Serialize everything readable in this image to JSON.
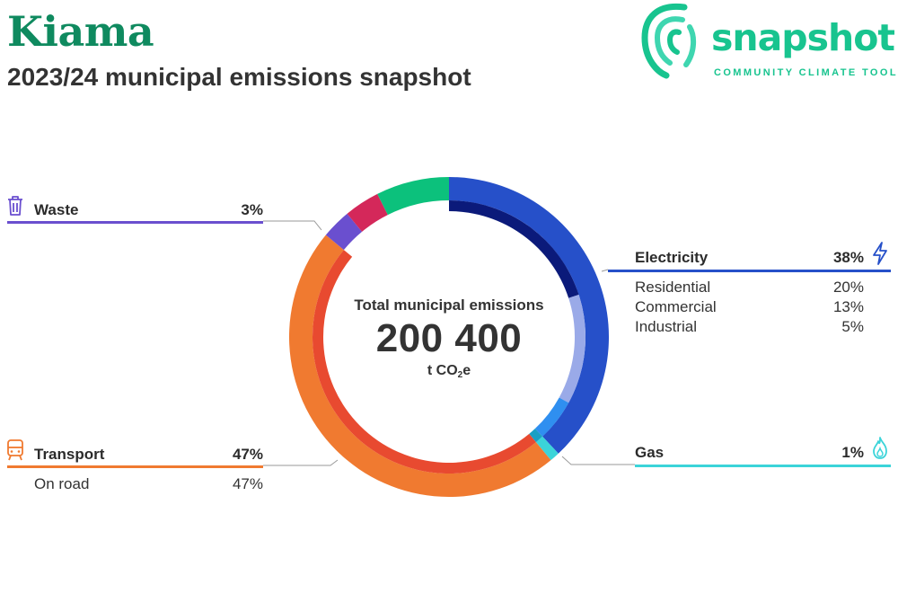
{
  "header": {
    "title": "Kiama",
    "subtitle": "2023/24 municipal emissions snapshot"
  },
  "logo": {
    "word": "snapshot",
    "tagline": "COMMUNITY CLIMATE TOOL"
  },
  "center": {
    "label": "Total municipal emissions",
    "total": "200 400",
    "unit_prefix": "t CO",
    "unit_sub": "2",
    "unit_suffix": "e"
  },
  "colors": {
    "electricity": "#2650c9",
    "electricity_residential": "#0b1a7a",
    "electricity_commercial": "#9aaae8",
    "electricity_industrial": "#2f8ff0",
    "gas": "#3bd4d9",
    "gas_inner": "#1a9fc4",
    "transport": "#f07a30",
    "transport_inner": "#e84a30",
    "waste": "#6a4fcf",
    "agriculture": "#d4285a",
    "other": "#0cc17c",
    "leader": "#9a9a9a"
  },
  "icons": {
    "waste": "trash-can-icon",
    "transport": "train-icon",
    "electricity": "lightning-bolt-icon",
    "gas": "flame-icon"
  },
  "chart_data": {
    "type": "pie",
    "title": "Total municipal emissions",
    "total": 200400,
    "unit": "t CO2e",
    "start_angle_deg": 0,
    "outer_ring": [
      {
        "key": "electricity",
        "label": "Electricity",
        "value": 38
      },
      {
        "key": "gas",
        "label": "Gas",
        "value": 1
      },
      {
        "key": "transport",
        "label": "Transport",
        "value": 47
      },
      {
        "key": "waste",
        "label": "Waste",
        "value": 3
      },
      {
        "key": "agriculture",
        "label": "",
        "value": 3.6
      },
      {
        "key": "other",
        "label": "",
        "value": 7.4
      }
    ],
    "inner_ring": [
      {
        "key": "electricity_residential",
        "parent": "electricity",
        "label": "Residential",
        "value": 20
      },
      {
        "key": "electricity_commercial",
        "parent": "electricity",
        "label": "Commercial",
        "value": 13
      },
      {
        "key": "electricity_industrial",
        "parent": "electricity",
        "label": "Industrial",
        "value": 5
      },
      {
        "key": "gas_inner",
        "parent": "gas",
        "label": "",
        "value": 1
      },
      {
        "key": "transport_inner",
        "parent": "transport",
        "label": "On road",
        "value": 47
      }
    ]
  },
  "labels": {
    "waste": {
      "name": "Waste",
      "pct": "3%"
    },
    "transport": {
      "name": "Transport",
      "pct": "47%",
      "subs": [
        {
          "name": "On road",
          "pct": "47%"
        }
      ]
    },
    "electricity": {
      "name": "Electricity",
      "pct": "38%",
      "subs": [
        {
          "name": "Residential",
          "pct": "20%"
        },
        {
          "name": "Commercial",
          "pct": "13%"
        },
        {
          "name": "Industrial",
          "pct": "5%"
        }
      ]
    },
    "gas": {
      "name": "Gas",
      "pct": "1%"
    }
  }
}
